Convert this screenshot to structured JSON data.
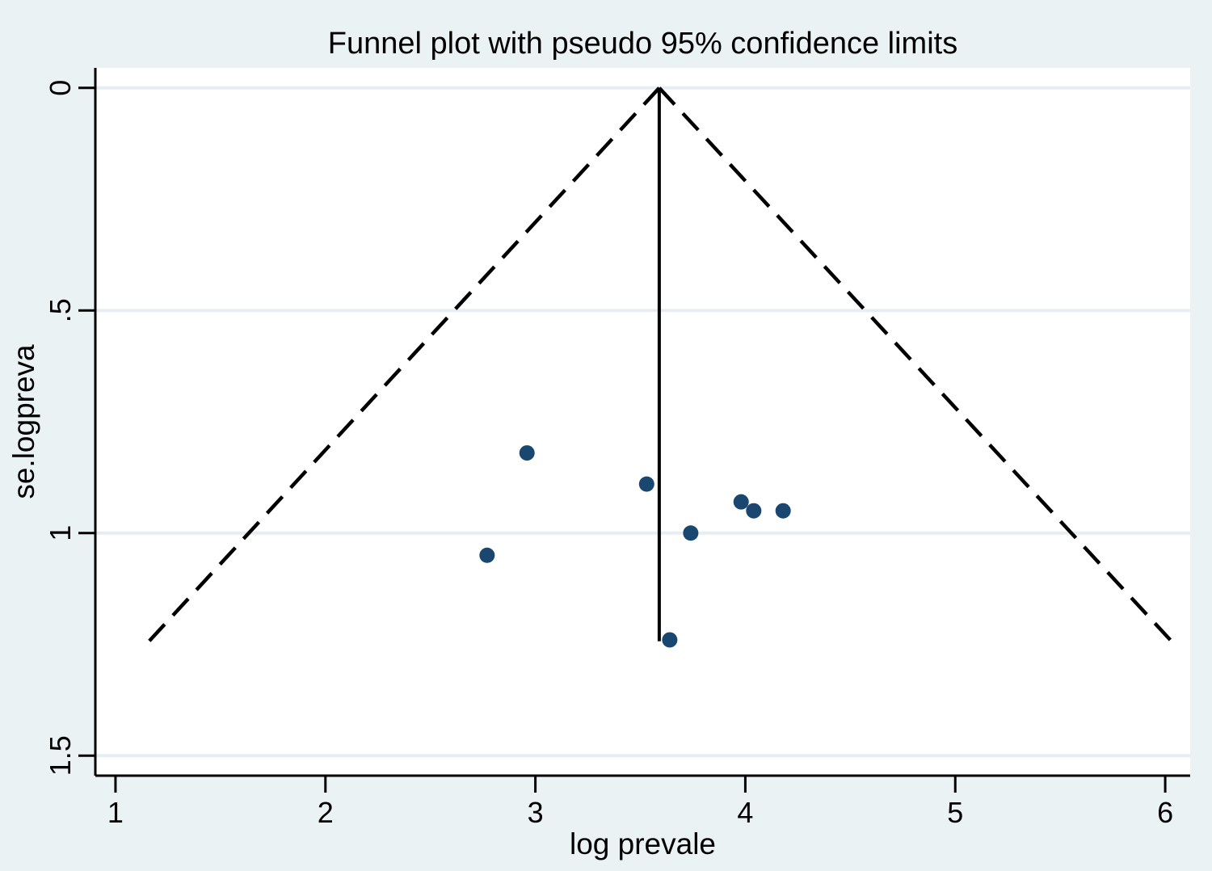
{
  "chart_data": {
    "type": "scatter",
    "title": "Funnel plot with pseudo 95% confidence limits",
    "xlabel": "log prevale",
    "ylabel": "se.logpreva",
    "xlim": [
      0.904,
      6.119
    ],
    "ylim": [
      -0.045,
      1.545
    ],
    "y_inverted": true,
    "grid": "horizontal",
    "legend": "none",
    "x_ticks": [
      1,
      2,
      3,
      4,
      5,
      6
    ],
    "x_tick_labels": [
      "1",
      "2",
      "3",
      "4",
      "5",
      "6"
    ],
    "y_ticks": [
      0,
      0.5,
      1,
      1.5
    ],
    "y_tick_labels": [
      "0",
      ".5",
      "1",
      "1.5"
    ],
    "points": [
      {
        "x": 2.96,
        "y": 0.82
      },
      {
        "x": 3.53,
        "y": 0.89
      },
      {
        "x": 3.98,
        "y": 0.93
      },
      {
        "x": 4.04,
        "y": 0.95
      },
      {
        "x": 4.18,
        "y": 0.95
      },
      {
        "x": 3.74,
        "y": 1.0
      },
      {
        "x": 2.77,
        "y": 1.05
      },
      {
        "x": 3.64,
        "y": 1.24
      }
    ],
    "pooled_estimate_line": {
      "x": 3.59,
      "se_from": 0,
      "se_to": 1.243
    },
    "confidence_limits": {
      "apex_x": 3.59,
      "apex_se": 0,
      "se_max": 1.243,
      "left_end_x": 1.16,
      "right_end_x": 6.03
    },
    "colors": {
      "background": "#eaf2f3",
      "plot_background": "#ffffff",
      "gridline": "#e6eef4",
      "marker": "#1a476f",
      "line": "#000000"
    }
  }
}
